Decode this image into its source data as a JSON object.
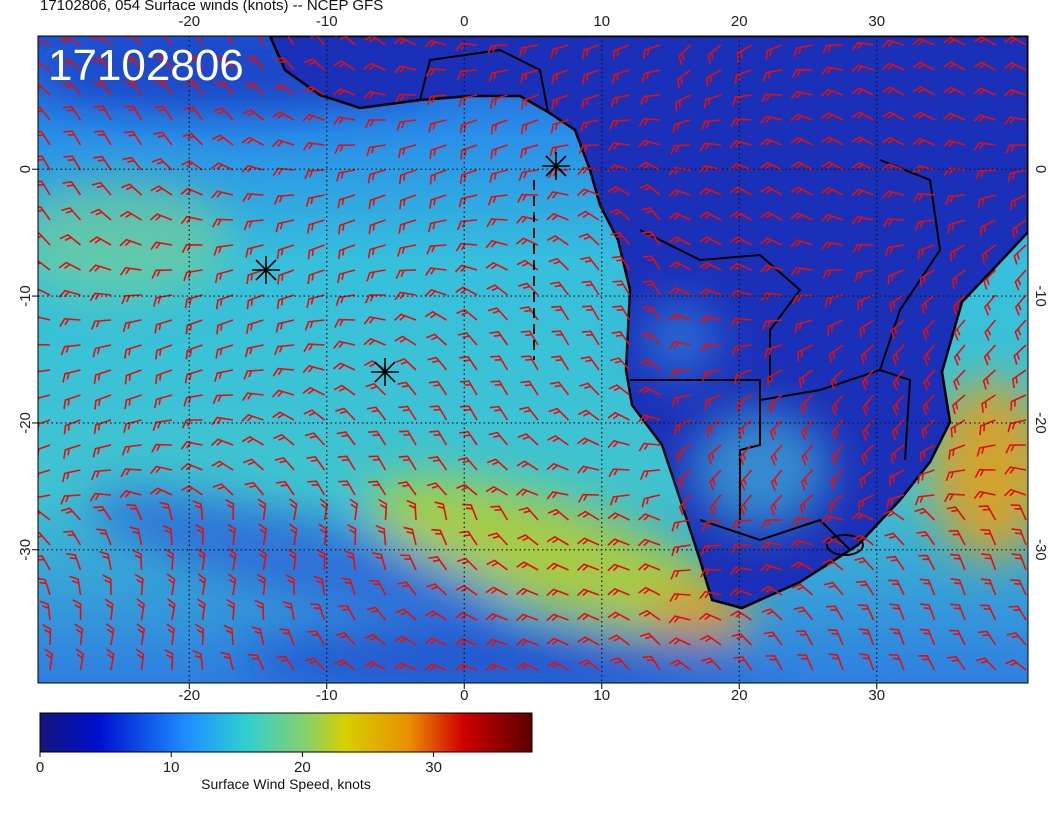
{
  "map": {
    "title": "17102806, 054 Surface winds (knots) -- NCEP GFS",
    "stamp": "17102806",
    "xlim": [
      -31,
      41
    ],
    "ylim": [
      -40.5,
      10.5
    ],
    "xticks": [
      -20,
      -10,
      0,
      10,
      20,
      30
    ],
    "yticks": [
      0,
      -10,
      -20,
      -30
    ],
    "grid": true,
    "colorbar": {
      "label": "Surface Wind Speed, knots",
      "lim": [
        0,
        37.5
      ],
      "ticks": [
        0,
        10,
        20,
        30
      ]
    }
  }
}
